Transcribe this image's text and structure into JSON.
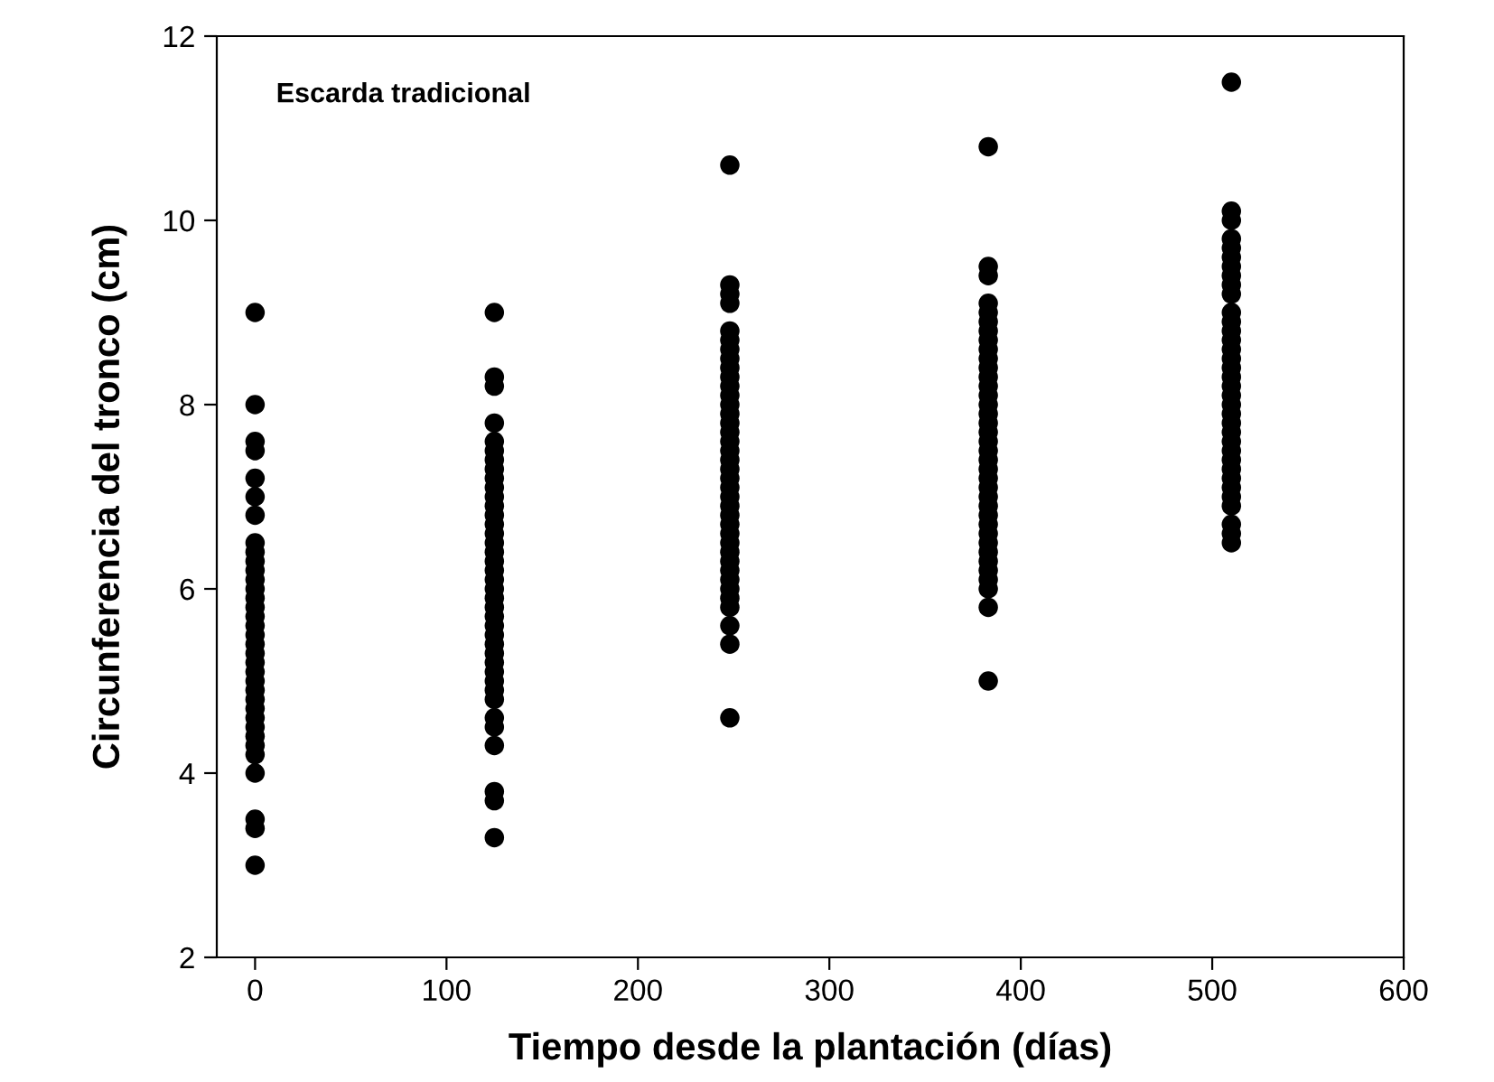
{
  "chart_data": {
    "type": "scatter",
    "xlabel": "Tiempo desde la plantación (días)",
    "ylabel": "Circunferencia del tronco (cm)",
    "annotations": [
      "Escarda tradicional"
    ],
    "xlim": [
      -20,
      600
    ],
    "xticks": [
      0,
      100,
      200,
      300,
      400,
      500,
      600
    ],
    "ylim": [
      2,
      12
    ],
    "yticks": [
      2,
      4,
      6,
      8,
      10,
      12
    ],
    "grid": false,
    "legend": false,
    "marker": "circle",
    "series": [
      {
        "color": "#000000",
        "x": [
          0,
          0,
          0,
          0,
          0,
          0,
          0,
          0,
          0,
          0,
          0,
          0,
          0,
          0,
          0,
          0,
          0,
          0,
          0,
          0,
          0,
          0,
          0,
          0,
          0,
          0,
          0,
          0,
          0,
          0,
          0,
          0,
          0,
          0,
          0
        ],
        "values": [
          9.0,
          8.0,
          7.6,
          7.5,
          7.2,
          7.0,
          6.8,
          6.5,
          6.4,
          6.3,
          6.2,
          6.1,
          6.0,
          5.9,
          5.8,
          5.7,
          5.6,
          5.5,
          5.4,
          5.3,
          5.2,
          5.1,
          5.0,
          4.9,
          4.8,
          4.7,
          4.6,
          4.5,
          4.4,
          4.3,
          4.2,
          4.0,
          3.5,
          3.4,
          3.0
        ]
      },
      {
        "color": "#000000",
        "x": [
          125,
          125,
          125,
          125,
          125,
          125,
          125,
          125,
          125,
          125,
          125,
          125,
          125,
          125,
          125,
          125,
          125,
          125,
          125,
          125,
          125,
          125,
          125,
          125,
          125,
          125,
          125,
          125,
          125,
          125,
          125,
          125,
          125,
          125,
          125,
          125,
          125,
          125,
          125
        ],
        "values": [
          9.0,
          8.3,
          8.2,
          7.8,
          7.6,
          7.5,
          7.4,
          7.3,
          7.2,
          7.1,
          7.0,
          6.9,
          6.8,
          6.7,
          6.6,
          6.5,
          6.4,
          6.3,
          6.2,
          6.1,
          6.0,
          5.9,
          5.8,
          5.7,
          5.6,
          5.5,
          5.4,
          5.3,
          5.2,
          5.1,
          5.0,
          4.9,
          4.8,
          4.6,
          4.5,
          4.3,
          3.8,
          3.7,
          3.3
        ]
      },
      {
        "color": "#000000",
        "x": [
          248,
          248,
          248,
          248,
          248,
          248,
          248,
          248,
          248,
          248,
          248,
          248,
          248,
          248,
          248,
          248,
          248,
          248,
          248,
          248,
          248,
          248,
          248,
          248,
          248,
          248,
          248,
          248,
          248,
          248,
          248,
          248,
          248,
          248,
          248,
          248,
          248,
          248
        ],
        "values": [
          10.6,
          9.3,
          9.2,
          9.1,
          8.8,
          8.7,
          8.6,
          8.5,
          8.4,
          8.3,
          8.2,
          8.1,
          8.0,
          7.9,
          7.8,
          7.7,
          7.6,
          7.5,
          7.4,
          7.3,
          7.2,
          7.1,
          7.0,
          6.9,
          6.8,
          6.7,
          6.6,
          6.5,
          6.4,
          6.3,
          6.2,
          6.1,
          6.0,
          5.9,
          5.6,
          5.4,
          4.6,
          5.8
        ]
      },
      {
        "color": "#000000",
        "x": [
          383,
          383,
          383,
          383,
          383,
          383,
          383,
          383,
          383,
          383,
          383,
          383,
          383,
          383,
          383,
          383,
          383,
          383,
          383,
          383,
          383,
          383,
          383,
          383,
          383,
          383,
          383,
          383,
          383,
          383,
          383,
          383,
          383,
          383,
          383,
          383,
          383
        ],
        "values": [
          10.8,
          9.5,
          9.4,
          9.1,
          9.0,
          8.9,
          8.8,
          8.7,
          8.6,
          8.5,
          8.4,
          8.3,
          8.2,
          8.1,
          8.0,
          7.9,
          7.8,
          7.7,
          7.6,
          7.5,
          7.4,
          7.3,
          7.2,
          7.1,
          7.0,
          6.9,
          6.8,
          6.7,
          6.6,
          6.5,
          6.4,
          6.3,
          6.2,
          6.1,
          6.0,
          5.8,
          5.0
        ]
      },
      {
        "color": "#000000",
        "x": [
          510,
          510,
          510,
          510,
          510,
          510,
          510,
          510,
          510,
          510,
          510,
          510,
          510,
          510,
          510,
          510,
          510,
          510,
          510,
          510,
          510,
          510,
          510,
          510,
          510,
          510,
          510,
          510,
          510,
          510,
          510,
          510,
          510,
          510,
          510
        ],
        "values": [
          11.5,
          10.1,
          10.0,
          9.8,
          9.7,
          9.6,
          9.5,
          9.4,
          9.3,
          9.2,
          9.0,
          8.9,
          8.8,
          8.7,
          8.6,
          8.5,
          8.4,
          8.3,
          8.2,
          8.1,
          8.0,
          7.9,
          7.8,
          7.7,
          7.6,
          7.5,
          7.4,
          7.3,
          7.2,
          7.1,
          7.0,
          6.9,
          6.7,
          6.6,
          6.5
        ]
      }
    ]
  }
}
